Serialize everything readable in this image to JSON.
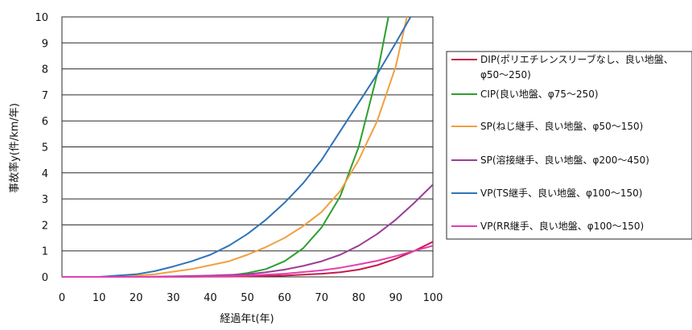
{
  "chart_data": {
    "type": "line",
    "xlabel": "経過年t(年)",
    "ylabel": "事故率y(件/km/年)",
    "xlim": [
      0,
      100
    ],
    "ylim": [
      0,
      10
    ],
    "xticks": [
      0,
      10,
      20,
      30,
      40,
      50,
      60,
      70,
      80,
      90,
      100
    ],
    "yticks": [
      0,
      1,
      2,
      3,
      4,
      5,
      6,
      7,
      8,
      9,
      10
    ],
    "grid": "horizontal",
    "legend_position": "right",
    "series": [
      {
        "name": "DIP(ポリエチレンスリーブなし、良い地盤、φ50～250)",
        "legend_lines": [
          "DIP(ポリエチレンスリーブなし、良い地盤、",
          "φ50～250)"
        ],
        "color": "#c8194b",
        "x": [
          0,
          10,
          20,
          30,
          40,
          50,
          60,
          70,
          75,
          80,
          85,
          90,
          95,
          100
        ],
        "y": [
          0.0,
          0.0,
          0.0,
          0.0,
          0.01,
          0.02,
          0.05,
          0.12,
          0.18,
          0.28,
          0.45,
          0.7,
          1.0,
          1.35
        ]
      },
      {
        "name": "CIP(良い地盤、φ75～250)",
        "legend_lines": [
          "CIP(良い地盤、φ75～250)"
        ],
        "color": "#2ca02c",
        "x": [
          0,
          10,
          20,
          30,
          40,
          45,
          50,
          55,
          60,
          65,
          70,
          75,
          80,
          85,
          88
        ],
        "y": [
          0.0,
          0.0,
          0.0,
          0.0,
          0.02,
          0.05,
          0.15,
          0.3,
          0.6,
          1.1,
          1.9,
          3.1,
          5.0,
          7.8,
          10.0
        ]
      },
      {
        "name": "SP(ねじ継手、良い地盤、φ50～150)",
        "legend_lines": [
          "SP(ねじ継手、良い地盤、φ50～150)"
        ],
        "color": "#f0a040",
        "x": [
          0,
          10,
          20,
          25,
          30,
          35,
          40,
          45,
          50,
          55,
          60,
          65,
          70,
          75,
          80,
          85,
          90,
          93
        ],
        "y": [
          0.0,
          0.0,
          0.05,
          0.1,
          0.2,
          0.3,
          0.45,
          0.6,
          0.85,
          1.15,
          1.5,
          1.95,
          2.5,
          3.3,
          4.5,
          6.0,
          8.1,
          10.0
        ]
      },
      {
        "name": "SP(溶接継手、良い地盤、φ200～450)",
        "legend_lines": [
          "SP(溶接継手、良い地盤、φ200～450)"
        ],
        "color": "#9b3d97",
        "x": [
          0,
          10,
          20,
          30,
          40,
          50,
          55,
          60,
          65,
          70,
          75,
          80,
          85,
          90,
          95,
          100
        ],
        "y": [
          0.0,
          0.0,
          0.0,
          0.02,
          0.05,
          0.1,
          0.18,
          0.28,
          0.42,
          0.6,
          0.85,
          1.2,
          1.65,
          2.2,
          2.85,
          3.55
        ]
      },
      {
        "name": "VP(TS継手、良い地盤、φ100～150)",
        "legend_lines": [
          "VP(TS継手、良い地盤、φ100～150)"
        ],
        "color": "#2f73b8",
        "x": [
          0,
          10,
          15,
          20,
          25,
          30,
          35,
          40,
          45,
          50,
          55,
          60,
          65,
          70,
          75,
          80,
          85,
          90,
          94
        ],
        "y": [
          0.0,
          0.0,
          0.05,
          0.1,
          0.22,
          0.4,
          0.6,
          0.85,
          1.2,
          1.65,
          2.2,
          2.85,
          3.6,
          4.5,
          5.6,
          6.7,
          7.8,
          9.0,
          10.0
        ]
      },
      {
        "name": "VP(RR継手、良い地盤、φ100～150)",
        "legend_lines": [
          "VP(RR継手、良い地盤、φ100～150)"
        ],
        "color": "#e040b0",
        "x": [
          0,
          10,
          20,
          30,
          40,
          50,
          60,
          70,
          75,
          80,
          85,
          90,
          95,
          100
        ],
        "y": [
          0.0,
          0.0,
          0.0,
          0.0,
          0.02,
          0.05,
          0.12,
          0.25,
          0.35,
          0.48,
          0.62,
          0.8,
          1.0,
          1.2
        ]
      }
    ]
  }
}
